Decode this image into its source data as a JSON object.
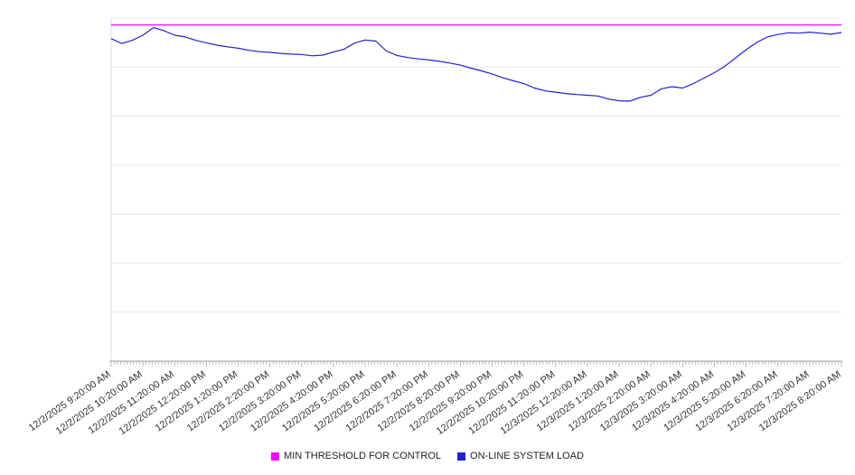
{
  "chart_data": {
    "type": "line",
    "title": "",
    "xlabel": "",
    "ylabel": "",
    "yticklabels": [],
    "ylim": [
      0,
      100
    ],
    "grid": true,
    "grid_divisions": 7,
    "minor_ticks_per_interval": 10,
    "legend_position": "bottom",
    "x": [
      "12/2/2025 9:20:00 AM",
      "12/2/2025 10:20:00 AM",
      "12/2/2025 11:20:00 AM",
      "12/2/2025 12:20:00 PM",
      "12/2/2025 1:20:00 PM",
      "12/2/2025 2:20:00 PM",
      "12/2/2025 3:20:00 PM",
      "12/2/2025 4:20:00 PM",
      "12/2/2025 5:20:00 PM",
      "12/2/2025 6:20:00 PM",
      "12/2/2025 7:20:00 PM",
      "12/2/2025 8:20:00 PM",
      "12/2/2025 9:20:00 PM",
      "12/2/2025 10:20:00 PM",
      "12/2/2025 11:20:00 PM",
      "12/3/2025 12:20:00 AM",
      "12/3/2025 1:20:00 AM",
      "12/3/2025 2:20:00 AM",
      "12/3/2025 3:20:00 AM",
      "12/3/2025 4:20:00 AM",
      "12/3/2025 5:20:00 AM",
      "12/3/2025 6:20:00 AM",
      "12/3/2025 7:20:00 AM",
      "12/3/2025 8:20:00 AM"
    ],
    "series": [
      {
        "name": "MIN THRESHOLD FOR CONTROL",
        "color": "#ff00ff",
        "constant": 98
      },
      {
        "name": "ON-LINE SYSTEM LOAD",
        "color": "#2222cc",
        "values": [
          94,
          92.6,
          93.5,
          95,
          97.2,
          96.3,
          95,
          94.5,
          93.5,
          92.8,
          92.1,
          91.6,
          91.2,
          90.6,
          90.2,
          90,
          89.7,
          89.5,
          89.4,
          89,
          89.2,
          90.1,
          90.9,
          92.7,
          93.6,
          93.3,
          90.4,
          89.1,
          88.5,
          88.1,
          87.8,
          87.4,
          86.9,
          86.3,
          85.4,
          84.6,
          83.7,
          82.6,
          81.7,
          80.9,
          79.6,
          78.8,
          78.4,
          78,
          77.7,
          77.5,
          77.3,
          76.4,
          75.9,
          75.8,
          76.9,
          77.5,
          79.4,
          80,
          79.6,
          80.9,
          82.5,
          84.1,
          86,
          88.4,
          90.8,
          92.9,
          94.5,
          95.2,
          95.7,
          95.6,
          95.9,
          95.6,
          95.3,
          95.8
        ]
      }
    ],
    "colors": {
      "gridline": "#e8e8e8",
      "axis": "#9a9a9a",
      "tick": "#a0a0a0",
      "tick_label": "#333333"
    }
  }
}
